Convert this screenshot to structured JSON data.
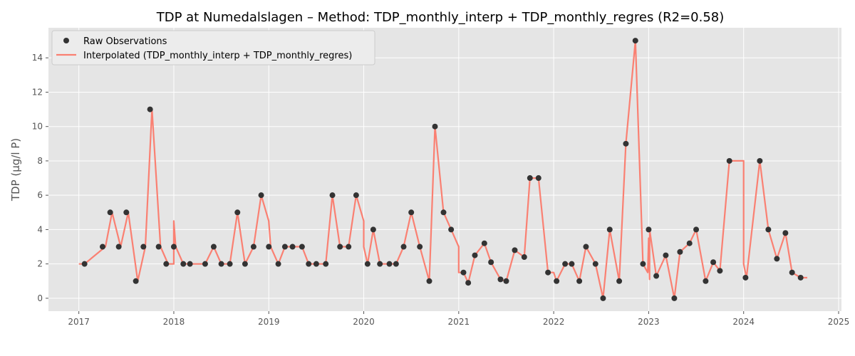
{
  "chart_data": {
    "type": "line",
    "title": "TDP at Numedalslagen – Method: TDP_monthly_interp + TDP_monthly_regres (R2=0.58)",
    "xlabel": "",
    "ylabel": "TDP (µg/l P)",
    "xlim": [
      2016.68,
      2025.03
    ],
    "ylim": [
      -0.75,
      15.75
    ],
    "x_ticks": [
      2017,
      2018,
      2019,
      2020,
      2021,
      2022,
      2023,
      2024,
      2025
    ],
    "x_tick_labels": [
      "2017",
      "2018",
      "2019",
      "2020",
      "2021",
      "2022",
      "2023",
      "2024",
      "2025"
    ],
    "y_ticks": [
      0,
      2,
      4,
      6,
      8,
      10,
      12,
      14
    ],
    "y_tick_labels": [
      "0",
      "2",
      "4",
      "6",
      "8",
      "10",
      "12",
      "14"
    ],
    "grid": true,
    "legend_position": "top-left",
    "colors": {
      "background": "#e5e5e5",
      "grid": "#ffffff",
      "points": "#333333",
      "line": "#fa8072"
    },
    "series": [
      {
        "name": "Raw Observations",
        "kind": "scatter",
        "points": [
          [
            2017.06,
            2
          ],
          [
            2017.25,
            3
          ],
          [
            2017.33,
            5
          ],
          [
            2017.42,
            3
          ],
          [
            2017.5,
            5
          ],
          [
            2017.6,
            1
          ],
          [
            2017.68,
            3
          ],
          [
            2017.75,
            11
          ],
          [
            2017.84,
            3
          ],
          [
            2017.92,
            2
          ],
          [
            2018.0,
            3
          ],
          [
            2018.1,
            2
          ],
          [
            2018.17,
            2
          ],
          [
            2018.33,
            2
          ],
          [
            2018.42,
            3
          ],
          [
            2018.5,
            2
          ],
          [
            2018.59,
            2
          ],
          [
            2018.67,
            5
          ],
          [
            2018.75,
            2
          ],
          [
            2018.84,
            3
          ],
          [
            2018.92,
            6
          ],
          [
            2019.0,
            3
          ],
          [
            2019.1,
            2
          ],
          [
            2019.17,
            3
          ],
          [
            2019.25,
            3
          ],
          [
            2019.35,
            3
          ],
          [
            2019.42,
            2
          ],
          [
            2019.5,
            2
          ],
          [
            2019.6,
            2
          ],
          [
            2019.67,
            6
          ],
          [
            2019.75,
            3
          ],
          [
            2019.84,
            3
          ],
          [
            2019.92,
            6
          ],
          [
            2020.04,
            2
          ],
          [
            2020.1,
            4
          ],
          [
            2020.17,
            2
          ],
          [
            2020.27,
            2
          ],
          [
            2020.34,
            2
          ],
          [
            2020.42,
            3
          ],
          [
            2020.5,
            5
          ],
          [
            2020.59,
            3
          ],
          [
            2020.69,
            1
          ],
          [
            2020.75,
            10
          ],
          [
            2020.84,
            5
          ],
          [
            2020.92,
            4
          ],
          [
            2021.05,
            1.5
          ],
          [
            2021.1,
            0.9
          ],
          [
            2021.17,
            2.5
          ],
          [
            2021.27,
            3.2
          ],
          [
            2021.34,
            2.1
          ],
          [
            2021.44,
            1.1
          ],
          [
            2021.5,
            1.0
          ],
          [
            2021.59,
            2.8
          ],
          [
            2021.69,
            2.4
          ],
          [
            2021.75,
            7
          ],
          [
            2021.84,
            7
          ],
          [
            2021.94,
            1.5
          ],
          [
            2022.03,
            1.0
          ],
          [
            2022.12,
            2.0
          ],
          [
            2022.19,
            2.0
          ],
          [
            2022.27,
            1.0
          ],
          [
            2022.34,
            3.0
          ],
          [
            2022.44,
            2.0
          ],
          [
            2022.52,
            0.0
          ],
          [
            2022.59,
            4.0
          ],
          [
            2022.69,
            1.0
          ],
          [
            2022.76,
            9.0
          ],
          [
            2022.86,
            15.0
          ],
          [
            2022.94,
            2.0
          ],
          [
            2023.0,
            4.0
          ],
          [
            2023.08,
            1.3
          ],
          [
            2023.18,
            2.5
          ],
          [
            2023.27,
            0.0
          ],
          [
            2023.33,
            2.7
          ],
          [
            2023.43,
            3.2
          ],
          [
            2023.5,
            4.0
          ],
          [
            2023.6,
            1.0
          ],
          [
            2023.68,
            2.1
          ],
          [
            2023.75,
            1.6
          ],
          [
            2023.85,
            8.0
          ],
          [
            2024.02,
            1.2
          ],
          [
            2024.17,
            8.0
          ],
          [
            2024.26,
            4.0
          ],
          [
            2024.35,
            2.3
          ],
          [
            2024.44,
            3.8
          ],
          [
            2024.51,
            1.5
          ],
          [
            2024.6,
            1.2
          ]
        ]
      },
      {
        "name": "Interpolated (TDP_monthly_interp + TDP_monthly_regres)",
        "kind": "line",
        "points": [
          [
            2017.0,
            2
          ],
          [
            2017.06,
            2
          ],
          [
            2017.28,
            3
          ],
          [
            2017.35,
            5
          ],
          [
            2017.44,
            3
          ],
          [
            2017.52,
            5
          ],
          [
            2017.62,
            1
          ],
          [
            2017.7,
            3
          ],
          [
            2017.77,
            11
          ],
          [
            2017.86,
            3
          ],
          [
            2017.94,
            2
          ],
          [
            2018.0,
            2
          ],
          [
            2018.0,
            4.5
          ],
          [
            2018.02,
            3
          ],
          [
            2018.1,
            2
          ],
          [
            2018.17,
            2
          ],
          [
            2018.33,
            2
          ],
          [
            2018.42,
            3
          ],
          [
            2018.5,
            2
          ],
          [
            2018.59,
            2
          ],
          [
            2018.67,
            5
          ],
          [
            2018.75,
            2
          ],
          [
            2018.84,
            3
          ],
          [
            2018.92,
            6
          ],
          [
            2019.0,
            4.5
          ],
          [
            2019.02,
            3
          ],
          [
            2019.1,
            2
          ],
          [
            2019.17,
            3
          ],
          [
            2019.25,
            3
          ],
          [
            2019.35,
            3
          ],
          [
            2019.42,
            2
          ],
          [
            2019.5,
            2
          ],
          [
            2019.6,
            2
          ],
          [
            2019.67,
            6
          ],
          [
            2019.75,
            3
          ],
          [
            2019.84,
            3
          ],
          [
            2019.92,
            6
          ],
          [
            2020.0,
            4.5
          ],
          [
            2020.0,
            3
          ],
          [
            2020.04,
            2
          ],
          [
            2020.1,
            4
          ],
          [
            2020.17,
            2
          ],
          [
            2020.27,
            2
          ],
          [
            2020.34,
            2
          ],
          [
            2020.42,
            3
          ],
          [
            2020.5,
            5
          ],
          [
            2020.59,
            3
          ],
          [
            2020.69,
            1
          ],
          [
            2020.75,
            10
          ],
          [
            2020.84,
            5
          ],
          [
            2020.92,
            4
          ],
          [
            2021.0,
            3
          ],
          [
            2021.0,
            1.5
          ],
          [
            2021.05,
            1.5
          ],
          [
            2021.1,
            0.9
          ],
          [
            2021.17,
            2.5
          ],
          [
            2021.27,
            3.2
          ],
          [
            2021.34,
            2.1
          ],
          [
            2021.44,
            1.1
          ],
          [
            2021.5,
            1.0
          ],
          [
            2021.59,
            2.8
          ],
          [
            2021.69,
            2.4
          ],
          [
            2021.75,
            7
          ],
          [
            2021.84,
            7
          ],
          [
            2021.94,
            1.5
          ],
          [
            2022.0,
            1.5
          ],
          [
            2022.03,
            1.0
          ],
          [
            2022.12,
            2.0
          ],
          [
            2022.19,
            2.0
          ],
          [
            2022.27,
            1.0
          ],
          [
            2022.34,
            3.0
          ],
          [
            2022.44,
            2.0
          ],
          [
            2022.52,
            0.0
          ],
          [
            2022.59,
            4.0
          ],
          [
            2022.69,
            1.0
          ],
          [
            2022.76,
            9.0
          ],
          [
            2022.86,
            15.0
          ],
          [
            2022.94,
            2.0
          ],
          [
            2022.99,
            1.5
          ],
          [
            2023.0,
            3.5
          ],
          [
            2023.01,
            1.1
          ],
          [
            2023.01,
            4.0
          ],
          [
            2023.08,
            1.3
          ],
          [
            2023.18,
            2.5
          ],
          [
            2023.27,
            0.0
          ],
          [
            2023.33,
            2.7
          ],
          [
            2023.43,
            3.2
          ],
          [
            2023.5,
            4.0
          ],
          [
            2023.6,
            1.0
          ],
          [
            2023.68,
            2.1
          ],
          [
            2023.75,
            1.6
          ],
          [
            2023.85,
            8.0
          ],
          [
            2024.0,
            8.0
          ],
          [
            2024.0,
            2.0
          ],
          [
            2024.03,
            1.2
          ],
          [
            2024.17,
            8.0
          ],
          [
            2024.26,
            4.0
          ],
          [
            2024.35,
            2.3
          ],
          [
            2024.44,
            3.8
          ],
          [
            2024.51,
            1.5
          ],
          [
            2024.6,
            1.2
          ],
          [
            2024.67,
            1.2
          ]
        ]
      }
    ]
  }
}
